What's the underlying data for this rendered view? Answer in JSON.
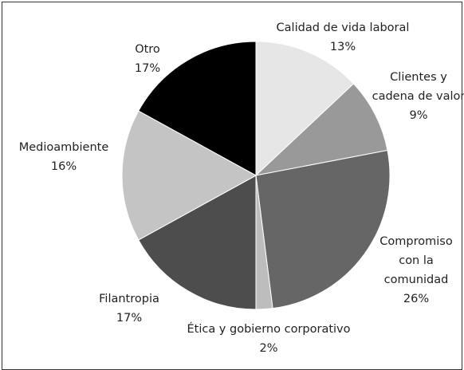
{
  "chart_data": {
    "type": "pie",
    "categories": [
      "Calidad de vida laboral",
      "Clientes y cadena de valor",
      "Compromiso con la comunidad",
      "Ética y gobierno corporativo",
      "Filantropia",
      "Medioambiente",
      "Otro"
    ],
    "values": [
      13,
      9,
      26,
      2,
      17,
      16,
      17
    ],
    "value_labels": [
      "13%",
      "9%",
      "26%",
      "2%",
      "17%",
      "16%",
      "17%"
    ],
    "colors": [
      "#e6e6e6",
      "#999999",
      "#666666",
      "#bdbdbd",
      "#4d4d4d",
      "#c4c4c4",
      "#000000"
    ]
  }
}
